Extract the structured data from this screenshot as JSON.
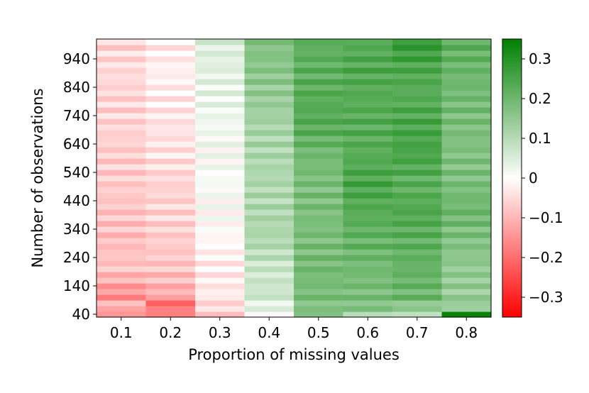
{
  "chart_data": {
    "type": "heatmap",
    "title": "",
    "xlabel": "Proportion of missing values",
    "ylabel": "Number of observations",
    "x_categories": [
      "0.1",
      "0.2",
      "0.3",
      "0.4",
      "0.5",
      "0.6",
      "0.7",
      "0.8"
    ],
    "y_tick_labels": [
      "40",
      "140",
      "240",
      "340",
      "440",
      "540",
      "640",
      "740",
      "840",
      "940"
    ],
    "y_tick_values": [
      40,
      140,
      240,
      340,
      440,
      540,
      640,
      740,
      840,
      940
    ],
    "y_range": [
      30,
      1010
    ],
    "y_row_step": 20,
    "color_range": [
      -0.35,
      0.35
    ],
    "colorbar": {
      "tick_values": [
        0.3,
        0.2,
        0.1,
        0,
        -0.1,
        -0.2,
        -0.3
      ],
      "tick_labels": [
        "0.3",
        "0.2",
        "0.1",
        "0",
        "−0.1",
        "−0.2",
        "−0.3"
      ],
      "colors": {
        "negative": "#ff0000",
        "zero": "#ffffff",
        "positive": "#008000"
      }
    },
    "column_profiles": [
      {
        "x": "0.1",
        "description": "light red",
        "y_values": [
          40,
          60,
          80,
          100,
          200,
          300,
          400,
          500,
          600,
          700,
          800,
          900,
          1000
        ],
        "values": [
          -0.14,
          -0.12,
          -0.1,
          -0.16,
          -0.08,
          -0.09,
          -0.08,
          -0.07,
          -0.07,
          -0.06,
          -0.06,
          -0.05,
          -0.06
        ]
      },
      {
        "x": "0.2",
        "description": "faint red",
        "y_values": [
          40,
          60,
          80,
          100,
          200,
          300,
          400,
          500,
          600,
          700,
          800,
          900,
          1000
        ],
        "values": [
          -0.16,
          -0.18,
          -0.22,
          -0.12,
          -0.08,
          -0.07,
          -0.06,
          -0.06,
          -0.04,
          -0.04,
          -0.03,
          -0.02,
          -0.03
        ]
      },
      {
        "x": "0.3",
        "description": "near zero",
        "y_values": [
          40,
          60,
          80,
          100,
          200,
          300,
          400,
          500,
          600,
          700,
          800,
          900,
          1000
        ],
        "values": [
          -0.07,
          -0.05,
          -0.06,
          -0.03,
          -0.03,
          -0.01,
          0.0,
          0.01,
          0.01,
          0.02,
          0.03,
          0.04,
          0.05
        ]
      },
      {
        "x": "0.4",
        "description": "light green",
        "y_values": [
          40,
          60,
          80,
          100,
          200,
          300,
          400,
          500,
          600,
          700,
          800,
          900,
          1000
        ],
        "values": [
          0.02,
          0.03,
          0.04,
          0.07,
          0.07,
          0.11,
          0.11,
          0.11,
          0.11,
          0.12,
          0.14,
          0.16,
          0.17
        ]
      },
      {
        "x": "0.5",
        "description": "medium green",
        "y_values": [
          40,
          60,
          80,
          100,
          200,
          300,
          400,
          500,
          600,
          700,
          800,
          900,
          1000
        ],
        "values": [
          0.2,
          0.15,
          0.18,
          0.18,
          0.19,
          0.18,
          0.18,
          0.18,
          0.19,
          0.23,
          0.23,
          0.22,
          0.22
        ]
      },
      {
        "x": "0.6",
        "description": "green",
        "y_values": [
          40,
          60,
          80,
          100,
          200,
          300,
          400,
          500,
          600,
          700,
          800,
          900,
          1000
        ],
        "values": [
          0.12,
          0.16,
          0.18,
          0.18,
          0.19,
          0.21,
          0.23,
          0.25,
          0.23,
          0.23,
          0.23,
          0.24,
          0.23
        ]
      },
      {
        "x": "0.7",
        "description": "green",
        "y_values": [
          40,
          60,
          80,
          100,
          200,
          300,
          400,
          500,
          600,
          700,
          800,
          900,
          1000
        ],
        "values": [
          0.1,
          0.14,
          0.17,
          0.2,
          0.21,
          0.22,
          0.24,
          0.22,
          0.25,
          0.25,
          0.23,
          0.24,
          0.28
        ]
      },
      {
        "x": "0.8",
        "description": "mixed green",
        "y_values": [
          40,
          60,
          80,
          100,
          200,
          300,
          400,
          500,
          600,
          700,
          800,
          900,
          1000
        ],
        "values": [
          0.34,
          0.12,
          0.16,
          0.14,
          0.15,
          0.17,
          0.2,
          0.18,
          0.17,
          0.18,
          0.19,
          0.2,
          0.22
        ]
      }
    ]
  }
}
